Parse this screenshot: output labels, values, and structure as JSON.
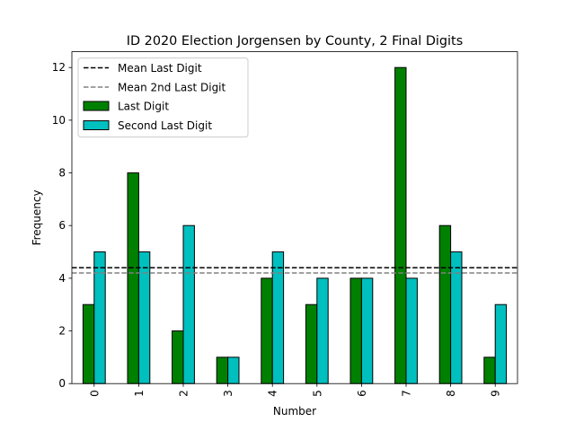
{
  "chart_data": {
    "type": "bar",
    "title": "ID 2020 Election Jorgensen by County, 2 Final Digits",
    "xlabel": "Number",
    "ylabel": "Frequency",
    "categories": [
      "0",
      "1",
      "2",
      "3",
      "4",
      "5",
      "6",
      "7",
      "8",
      "9"
    ],
    "series": [
      {
        "name": "Last Digit",
        "values": [
          3,
          8,
          2,
          1,
          4,
          3,
          4,
          12,
          6,
          1
        ],
        "color": "#008000"
      },
      {
        "name": "Second Last Digit",
        "values": [
          5,
          5,
          6,
          1,
          5,
          4,
          4,
          4,
          5,
          3
        ],
        "color": "#00bfbf"
      }
    ],
    "reference_lines": [
      {
        "name": "Mean Last Digit",
        "value": 4.4,
        "color": "#000000",
        "style": "dashed"
      },
      {
        "name": "Mean 2nd Last Digit",
        "value": 4.2,
        "color": "#808080",
        "style": "dashed"
      }
    ],
    "ylim": [
      0,
      12.6
    ],
    "yticks": [
      0,
      2,
      4,
      6,
      8,
      10,
      12
    ],
    "grid": false,
    "legend_position": "top-left"
  }
}
